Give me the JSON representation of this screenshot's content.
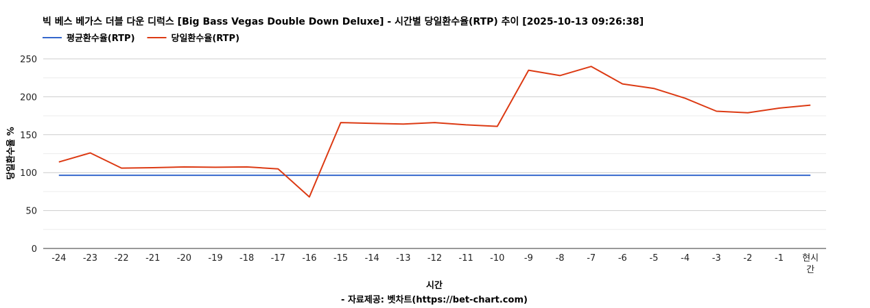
{
  "chart_data": {
    "type": "line",
    "title": "빅 베스 베가스 더블 다운 디럭스 [Big Bass Vegas Double Down Deluxe] - 시간별 당일환수율(RTP) 추이 [2025-10-13 09:26:38]",
    "xlabel": "시간",
    "ylabel": "당일환수율 %",
    "source": "- 자료제공: 벳차트(https://bet-chart.com)",
    "categories": [
      "-24",
      "-23",
      "-22",
      "-21",
      "-20",
      "-19",
      "-18",
      "-17",
      "-16",
      "-15",
      "-14",
      "-13",
      "-12",
      "-11",
      "-10",
      "-9",
      "-8",
      "-7",
      "-6",
      "-5",
      "-4",
      "-3",
      "-2",
      "-1",
      "현시간"
    ],
    "ylim": [
      0,
      250
    ],
    "yticks": [
      0,
      50,
      100,
      150,
      200,
      250
    ],
    "grid": true,
    "legend_position": "top-left",
    "series": [
      {
        "name": "평균환수율(RTP)",
        "color": "#3366cc",
        "values": [
          96.5,
          96.5,
          96.5,
          96.5,
          96.5,
          96.5,
          96.5,
          96.5,
          96.5,
          96.5,
          96.5,
          96.5,
          96.5,
          96.5,
          96.5,
          96.5,
          96.5,
          96.5,
          96.5,
          96.5,
          96.5,
          96.5,
          96.5,
          96.5,
          96.5
        ]
      },
      {
        "name": "당일환수율(RTP)",
        "color": "#dc3912",
        "values": [
          114,
          126,
          106,
          106.5,
          107.5,
          107,
          107.5,
          105,
          68,
          166,
          165,
          164,
          166,
          163,
          161,
          235,
          228,
          240,
          217,
          211,
          198,
          181,
          179,
          185,
          189
        ]
      }
    ]
  }
}
